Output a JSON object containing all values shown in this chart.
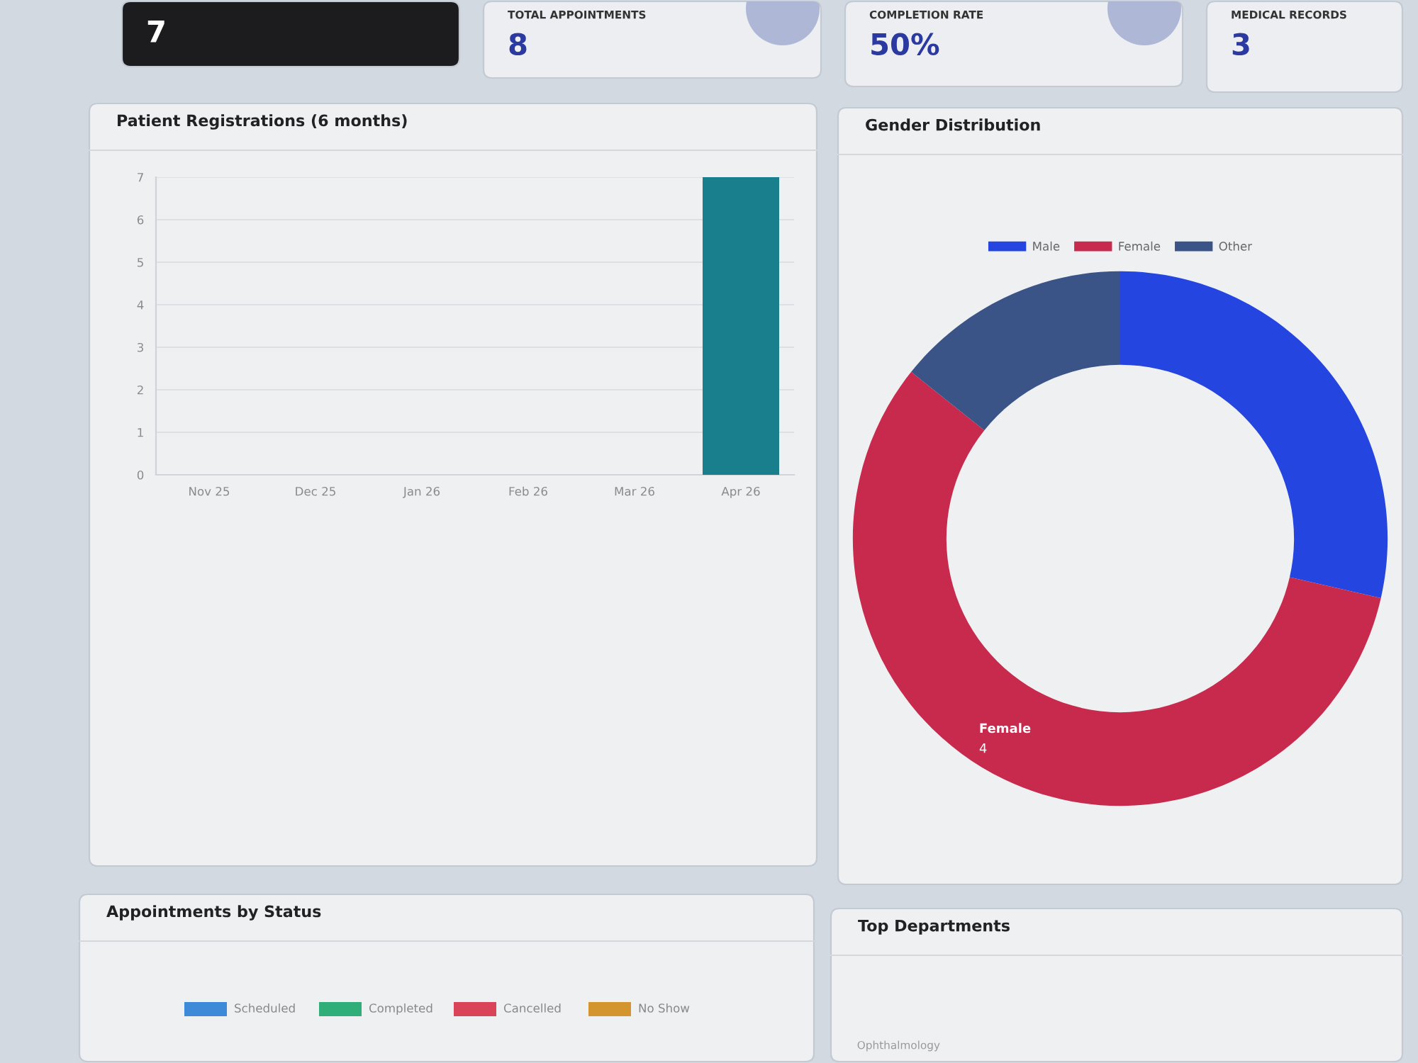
{
  "chart_data": [
    {
      "type": "other",
      "annotations": [
        "7"
      ]
    },
    {
      "type": "other",
      "title": "TOTAL APPOINTMENTS",
      "annotations": [
        "8"
      ]
    },
    {
      "type": "other",
      "title": "COMPLETION RATE",
      "annotations": [
        "50%"
      ]
    },
    {
      "type": "other",
      "title": "MEDICAL RECORDS",
      "annotations": [
        "3"
      ]
    },
    {
      "type": "bar",
      "title": "Patient Registrations (6 months)",
      "categories": [
        "Nov 25",
        "Dec 25",
        "Jan 26",
        "Feb 26",
        "Mar 26",
        "Apr 26"
      ],
      "values": [
        0,
        0,
        0,
        0,
        0,
        7
      ],
      "color": "#1a7f8c",
      "ylim": [
        0,
        7
      ],
      "yticks": [
        0,
        1,
        2,
        3,
        4,
        5,
        6,
        7
      ],
      "grid": "y"
    },
    {
      "type": "donut",
      "title": "Gender Distribution",
      "categories": [
        "Male",
        "Female",
        "Other"
      ],
      "values": [
        2,
        4,
        1
      ],
      "colors": [
        "#2545e0",
        "#c82a4e",
        "#3b5488"
      ],
      "legend": "top",
      "value_labels": [
        null,
        "4",
        null
      ]
    },
    {
      "type": "other",
      "title": "Appointments by Status",
      "categories": [
        "Scheduled",
        "Completed",
        "Cancelled",
        "No Show"
      ],
      "colors": [
        "#3c8ad8",
        "#2fae7a",
        "#d94459",
        "#d4952e"
      ]
    },
    {
      "type": "other",
      "title": "Top Departments",
      "categories": [
        "Ophthalmology"
      ]
    }
  ]
}
